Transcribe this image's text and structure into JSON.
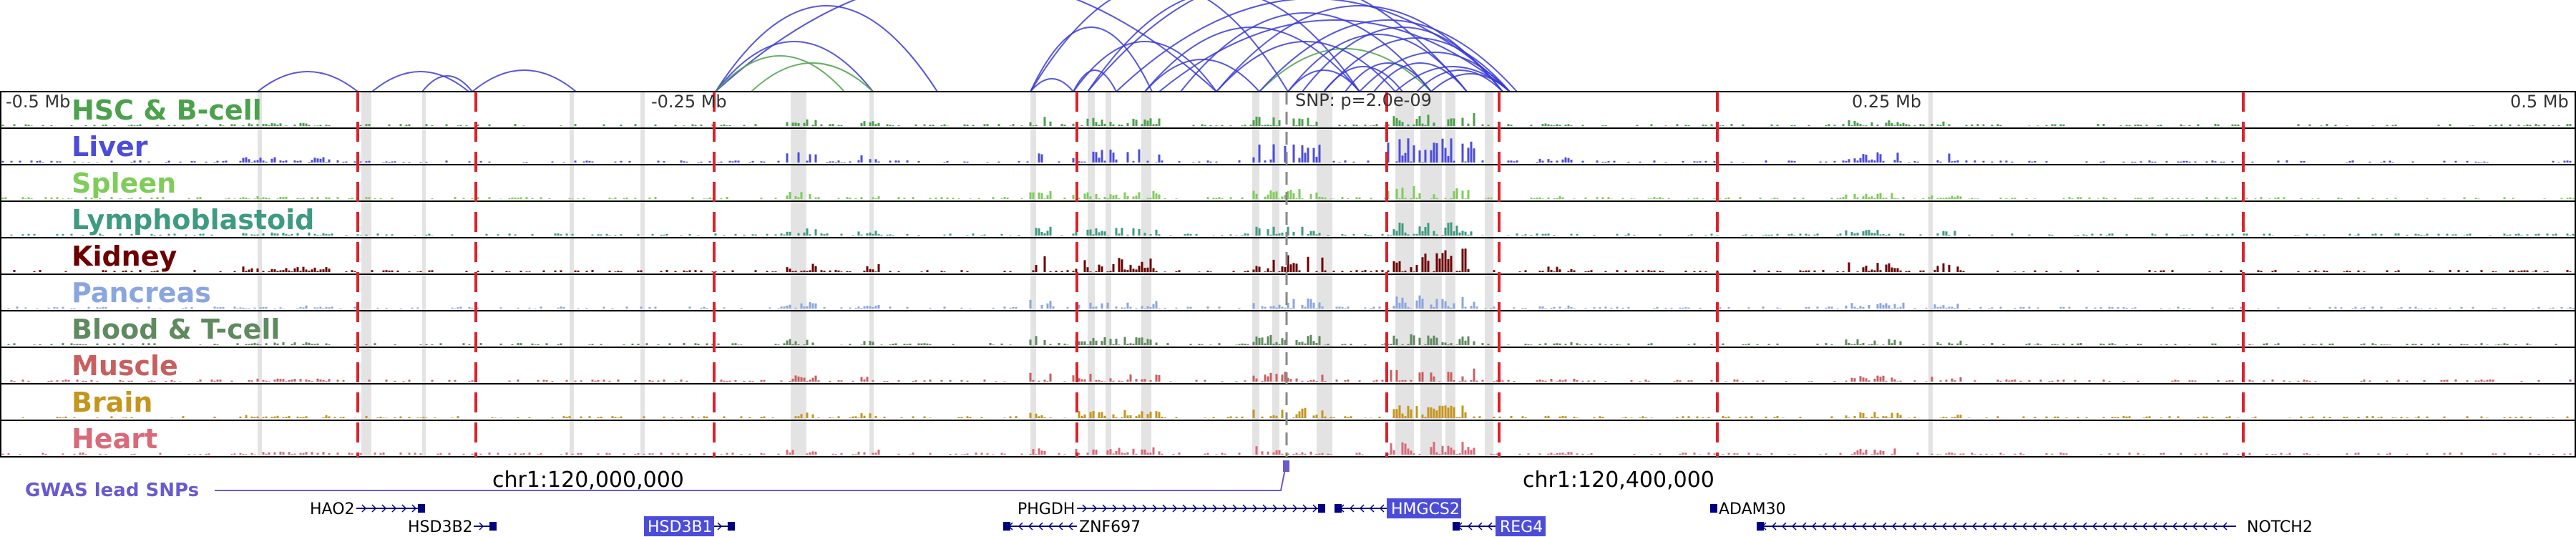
{
  "axis": {
    "tick_labels": [
      "-0.5 Mb",
      "-0.25 Mb",
      "0.25 Mb",
      "0.5 Mb"
    ],
    "snp_label": "SNP: p=2.0e-09",
    "chr_labels": [
      "chr1:120,000,000",
      "chr1:120,400,000"
    ]
  },
  "tracks": [
    {
      "name": "HSC & B-cell",
      "color": "#4ca14c"
    },
    {
      "name": "Liver",
      "color": "#4c4cdb"
    },
    {
      "name": "Spleen",
      "color": "#7fcc5a"
    },
    {
      "name": "Lymphoblastoid",
      "color": "#3f9a82"
    },
    {
      "name": "Kidney",
      "color": "#6b0000"
    },
    {
      "name": "Pancreas",
      "color": "#8aa6e0"
    },
    {
      "name": "Blood & T-cell",
      "color": "#5f8a5f"
    },
    {
      "name": "Muscle",
      "color": "#c85f5f"
    },
    {
      "name": "Brain",
      "color": "#c4961e"
    },
    {
      "name": "Heart",
      "color": "#d86a7a"
    }
  ],
  "gwas": {
    "label": "GWAS lead SNPs",
    "color": "#6a5acd"
  },
  "genes": [
    {
      "name": "HAO2",
      "highlight": false
    },
    {
      "name": "HSD3B2",
      "highlight": false
    },
    {
      "name": "HSD3B1",
      "highlight": true
    },
    {
      "name": "PHGDH",
      "highlight": false
    },
    {
      "name": "ZNF697",
      "highlight": false
    },
    {
      "name": "HMGCS2",
      "highlight": true
    },
    {
      "name": "REG4",
      "highlight": true
    },
    {
      "name": "ADAM30",
      "highlight": false
    },
    {
      "name": "NOTCH2",
      "highlight": false
    }
  ],
  "colors": {
    "loop": "#3a3ad6",
    "loop_green": "#4ca14c",
    "region_line": "#e0202a",
    "shade": "#d9d9d9",
    "gene_body": "#000080",
    "gene_highlight": "#4c4cdb"
  }
}
